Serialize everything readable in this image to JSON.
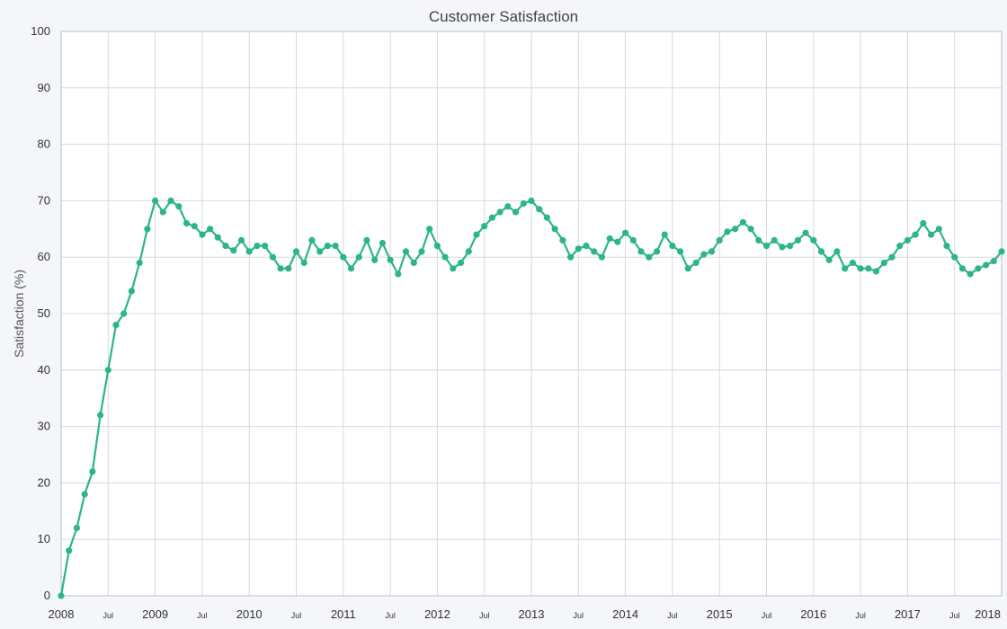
{
  "chart_data": {
    "type": "line",
    "title": "Customer Satisfaction",
    "xlabel": "",
    "ylabel": "Satisfaction (%)",
    "ylim": [
      0,
      100
    ],
    "y_ticks": [
      0,
      10,
      20,
      30,
      40,
      50,
      60,
      70,
      80,
      90,
      100
    ],
    "x_range": [
      "2008-01",
      "2018-01"
    ],
    "x_ticks": [
      {
        "date": "2008-01",
        "label": "2008"
      },
      {
        "date": "2008-07",
        "label": "Jul"
      },
      {
        "date": "2009-01",
        "label": "2009"
      },
      {
        "date": "2009-07",
        "label": "Jul"
      },
      {
        "date": "2010-01",
        "label": "2010"
      },
      {
        "date": "2010-07",
        "label": "Jul"
      },
      {
        "date": "2011-01",
        "label": "2011"
      },
      {
        "date": "2011-07",
        "label": "Jul"
      },
      {
        "date": "2012-01",
        "label": "2012"
      },
      {
        "date": "2012-07",
        "label": "Jul"
      },
      {
        "date": "2013-01",
        "label": "2013"
      },
      {
        "date": "2013-07",
        "label": "Jul"
      },
      {
        "date": "2014-01",
        "label": "2014"
      },
      {
        "date": "2014-07",
        "label": "Jul"
      },
      {
        "date": "2015-01",
        "label": "2015"
      },
      {
        "date": "2015-07",
        "label": "Jul"
      },
      {
        "date": "2016-01",
        "label": "2016"
      },
      {
        "date": "2016-07",
        "label": "Jul"
      },
      {
        "date": "2017-01",
        "label": "2017"
      },
      {
        "date": "2017-07",
        "label": "Jul"
      },
      {
        "date": "2018-01",
        "label": "2018"
      }
    ],
    "grid": true,
    "colors": {
      "line": "#2db588",
      "grid": "#d6d9de",
      "background": "#ffffff",
      "page": "#f4f6f9"
    },
    "series": [
      {
        "x": [
          "2008-01",
          "2008-02",
          "2008-03",
          "2008-04",
          "2008-05",
          "2008-06",
          "2008-07",
          "2008-08",
          "2008-09",
          "2008-10",
          "2008-11",
          "2008-12",
          "2009-01",
          "2009-02",
          "2009-03",
          "2009-04",
          "2009-05",
          "2009-06",
          "2009-07",
          "2009-08",
          "2009-09",
          "2009-10",
          "2009-11",
          "2009-12",
          "2010-01",
          "2010-02",
          "2010-03",
          "2010-04",
          "2010-05",
          "2010-06",
          "2010-07",
          "2010-08",
          "2010-09",
          "2010-10",
          "2010-11",
          "2010-12",
          "2011-01",
          "2011-02",
          "2011-03",
          "2011-04",
          "2011-05",
          "2011-06",
          "2011-07",
          "2011-08",
          "2011-09",
          "2011-10",
          "2011-11",
          "2011-12",
          "2012-01",
          "2012-02",
          "2012-03",
          "2012-04",
          "2012-05",
          "2012-06",
          "2012-07",
          "2012-08",
          "2012-09",
          "2012-10",
          "2012-11",
          "2012-12",
          "2013-01",
          "2013-02",
          "2013-03",
          "2013-04",
          "2013-05",
          "2013-06",
          "2013-07",
          "2013-08",
          "2013-09",
          "2013-10",
          "2013-11",
          "2013-12",
          "2014-01",
          "2014-02",
          "2014-03",
          "2014-04",
          "2014-05",
          "2014-06",
          "2014-07",
          "2014-08",
          "2014-09",
          "2014-10",
          "2014-11",
          "2014-12",
          "2015-01",
          "2015-02",
          "2015-03",
          "2015-04",
          "2015-05",
          "2015-06",
          "2015-07",
          "2015-08",
          "2015-09",
          "2015-10",
          "2015-11",
          "2015-12",
          "2016-01",
          "2016-02",
          "2016-03",
          "2016-04",
          "2016-05",
          "2016-06",
          "2016-07",
          "2016-08",
          "2016-09",
          "2016-10",
          "2016-11",
          "2016-12",
          "2017-01",
          "2017-02",
          "2017-03",
          "2017-04",
          "2017-05",
          "2017-06",
          "2017-07",
          "2017-08",
          "2017-09",
          "2017-10",
          "2017-11",
          "2017-12",
          "2018-01"
        ],
        "values": [
          0,
          8,
          12,
          18,
          22,
          32,
          40,
          48,
          50,
          54,
          59,
          65,
          70,
          68,
          70,
          69,
          66,
          65.5,
          64,
          65,
          63.5,
          62,
          61.2,
          63,
          61,
          62,
          62,
          60,
          58,
          58,
          61,
          59,
          63,
          61,
          62,
          62,
          60,
          58,
          60,
          63,
          59.5,
          62.5,
          59.5,
          57,
          61,
          59,
          61,
          65,
          62,
          60,
          58,
          59,
          61,
          64,
          65.5,
          67,
          68,
          69,
          68,
          69.5,
          70,
          68.5,
          67,
          65,
          63,
          60,
          61.5,
          62,
          61,
          60,
          63.3,
          62.7,
          64.3,
          63,
          61,
          60,
          61,
          64,
          62,
          61,
          58,
          59,
          60.5,
          61,
          63,
          64.5,
          65,
          66.2,
          65,
          63,
          62,
          63,
          61.8,
          62,
          63,
          64.3,
          63,
          61,
          59.5,
          61,
          58,
          59,
          58,
          58,
          57.5,
          59,
          60,
          62,
          63,
          64,
          66,
          64,
          65,
          62,
          60,
          58,
          57,
          58,
          58.6,
          59.3,
          61
        ]
      }
    ]
  }
}
